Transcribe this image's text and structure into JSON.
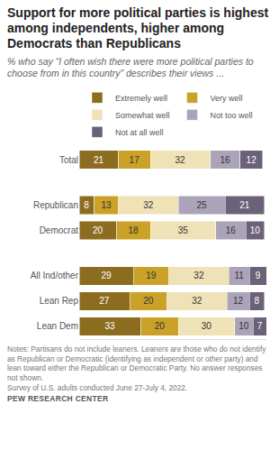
{
  "chart_data": {
    "type": "bar",
    "title": "Support for more political parties is highest among independents, higher among Democrats than Republicans",
    "subtitle": "% who say “I often wish there were more political parties to choose from in this country” describes their views ...",
    "notes": "Notes: Partisans do not include leaners. Leaners are those who do not identify as Republican or Democratic (identifying as independent or other party) and lean toward either the Republican or Democratic Party. No answer responses not shown.",
    "source": "Survey of U.S. adults conducted June 27-July 4, 2022.",
    "credit": "PEW RESEARCH CENTER",
    "orientation": "horizontal",
    "stacked": true,
    "data_labels": true,
    "tick_labels": "y",
    "legend": "top",
    "grid": false,
    "categories": [
      "Total",
      "Republican",
      "Democrat",
      "All Ind/other",
      "Lean Rep",
      "Lean Dem"
    ],
    "xlim": [
      0,
      100
    ],
    "series": [
      {
        "name": "Extremely well",
        "color": "#8c6d1f",
        "values": [
          21,
          8,
          20,
          29,
          27,
          33
        ]
      },
      {
        "name": "Very well",
        "color": "#c9a227",
        "values": [
          17,
          13,
          18,
          19,
          20,
          20
        ]
      },
      {
        "name": "Somewhat well",
        "color": "#efe2b6",
        "values": [
          32,
          32,
          35,
          32,
          32,
          30
        ]
      },
      {
        "name": "Not too well",
        "color": "#aba4b8",
        "values": [
          16,
          25,
          16,
          11,
          12,
          10
        ]
      },
      {
        "name": "Not at all well",
        "color": "#6b6178",
        "values": [
          12,
          21,
          10,
          9,
          8,
          7
        ]
      }
    ]
  }
}
